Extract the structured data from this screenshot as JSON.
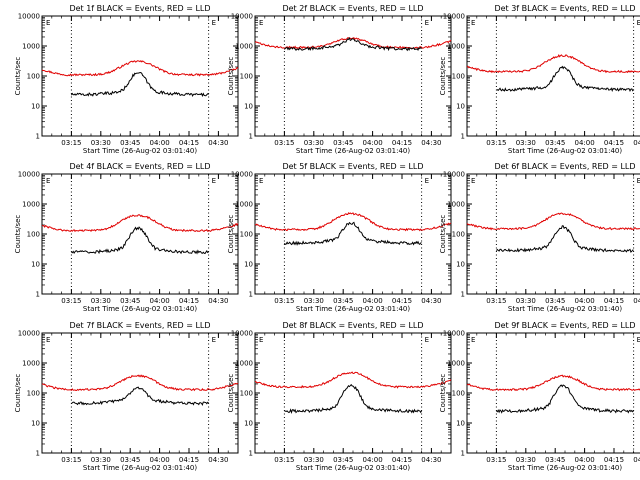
{
  "chart_data": [
    {
      "type": "line",
      "title": "Det 1f BLACK = Events, RED = LLD",
      "xlabel": "Start Time (26-Aug-02 03:01:40)",
      "ylabel": "Counts/sec",
      "yscale": "log",
      "ylim": [
        1,
        10000
      ],
      "xlim": [
        "03:00",
        "04:40"
      ],
      "x_ticks": [
        "03:15",
        "03:30",
        "03:45",
        "04:00",
        "04:15",
        "04:30"
      ],
      "y_ticks": [
        "1",
        "10",
        "100",
        "1000",
        "10000"
      ],
      "markers": [
        "03:15",
        "04:25"
      ],
      "marker_label": "E",
      "series": [
        {
          "name": "RED",
          "color": "#e00000",
          "start": "03:00",
          "end": "04:40",
          "base": 110,
          "peak": 310
        },
        {
          "name": "BLACK",
          "color": "#000000",
          "start": "03:15",
          "end": "04:25",
          "base": 24,
          "peak": 120
        }
      ]
    },
    {
      "type": "line",
      "title": "Det 2f BLACK = Events, RED = LLD",
      "xlabel": "Start Time (26-Aug-02 03:01:40)",
      "ylabel": "Counts/sec",
      "yscale": "log",
      "ylim": [
        1,
        10000
      ],
      "xlim": [
        "03:00",
        "04:40"
      ],
      "x_ticks": [
        "03:15",
        "03:30",
        "03:45",
        "04:00",
        "04:15",
        "04:30"
      ],
      "y_ticks": [
        "1",
        "10",
        "100",
        "1000",
        "10000"
      ],
      "markers": [
        "03:15",
        "04:25"
      ],
      "marker_label": "E",
      "series": [
        {
          "name": "RED",
          "color": "#e00000",
          "start": "03:00",
          "end": "04:40",
          "base": 900,
          "peak": 1800
        },
        {
          "name": "BLACK",
          "color": "#000000",
          "start": "03:15",
          "end": "04:25",
          "base": 800,
          "peak": 1400
        }
      ]
    },
    {
      "type": "line",
      "title": "Det 3f BLACK = Events, RED = LLD",
      "xlabel": "Start Time (26-Aug-02 03:01:40)",
      "ylabel": "Counts/sec",
      "yscale": "log",
      "ylim": [
        1,
        10000
      ],
      "xlim": [
        "03:00",
        "04:40"
      ],
      "x_ticks": [
        "03:15",
        "03:30",
        "03:45",
        "04:00",
        "04:15",
        "04:30"
      ],
      "y_ticks": [
        "1",
        "10",
        "100",
        "1000",
        "10000"
      ],
      "markers": [
        "03:15",
        "04:25"
      ],
      "marker_label": "E",
      "series": [
        {
          "name": "RED",
          "color": "#e00000",
          "start": "03:00",
          "end": "04:40",
          "base": 140,
          "peak": 480
        },
        {
          "name": "BLACK",
          "color": "#000000",
          "start": "03:15",
          "end": "04:25",
          "base": 35,
          "peak": 180
        }
      ]
    },
    {
      "type": "line",
      "title": "Det 4f BLACK = Events, RED = LLD",
      "xlabel": "Start Time (26-Aug-02 03:01:40)",
      "ylabel": "Counts/sec",
      "yscale": "log",
      "ylim": [
        1,
        10000
      ],
      "xlim": [
        "03:00",
        "04:40"
      ],
      "x_ticks": [
        "03:15",
        "03:30",
        "03:45",
        "04:00",
        "04:15",
        "04:30"
      ],
      "y_ticks": [
        "1",
        "10",
        "100",
        "1000",
        "10000"
      ],
      "markers": [
        "03:15",
        "04:25"
      ],
      "marker_label": "E",
      "series": [
        {
          "name": "RED",
          "color": "#e00000",
          "start": "03:00",
          "end": "04:40",
          "base": 130,
          "peak": 420
        },
        {
          "name": "BLACK",
          "color": "#000000",
          "start": "03:15",
          "end": "04:25",
          "base": 25,
          "peak": 150
        }
      ]
    },
    {
      "type": "line",
      "title": "Det 5f BLACK = Events, RED = LLD",
      "xlabel": "Start Time (26-Aug-02 03:01:40)",
      "ylabel": "Counts/sec",
      "yscale": "log",
      "ylim": [
        1,
        10000
      ],
      "xlim": [
        "03:00",
        "04:40"
      ],
      "x_ticks": [
        "03:15",
        "03:30",
        "03:45",
        "04:00",
        "04:15",
        "04:30"
      ],
      "y_ticks": [
        "1",
        "10",
        "100",
        "1000",
        "10000"
      ],
      "markers": [
        "03:15",
        "04:25"
      ],
      "marker_label": "E",
      "series": [
        {
          "name": "RED",
          "color": "#e00000",
          "start": "03:00",
          "end": "04:40",
          "base": 140,
          "peak": 480
        },
        {
          "name": "BLACK",
          "color": "#000000",
          "start": "03:15",
          "end": "04:25",
          "base": 50,
          "peak": 220
        }
      ]
    },
    {
      "type": "line",
      "title": "Det 6f BLACK = Events, RED = LLD",
      "xlabel": "Start Time (26-Aug-02 03:01:40)",
      "ylabel": "Counts/sec",
      "yscale": "log",
      "ylim": [
        1,
        10000
      ],
      "xlim": [
        "03:00",
        "04:40"
      ],
      "x_ticks": [
        "03:15",
        "03:30",
        "03:45",
        "04:00",
        "04:15",
        "04:30"
      ],
      "y_ticks": [
        "1",
        "10",
        "100",
        "1000",
        "10000"
      ],
      "markers": [
        "03:15",
        "04:25"
      ],
      "marker_label": "E",
      "series": [
        {
          "name": "RED",
          "color": "#e00000",
          "start": "03:00",
          "end": "04:40",
          "base": 150,
          "peak": 480
        },
        {
          "name": "BLACK",
          "color": "#000000",
          "start": "03:15",
          "end": "04:25",
          "base": 28,
          "peak": 160
        }
      ]
    },
    {
      "type": "line",
      "title": "Det 7f BLACK = Events, RED = LLD",
      "xlabel": "Start Time (26-Aug-02 03:01:40)",
      "ylabel": "Counts/sec",
      "yscale": "log",
      "ylim": [
        1,
        10000
      ],
      "xlim": [
        "03:00",
        "04:40"
      ],
      "x_ticks": [
        "03:15",
        "03:30",
        "03:45",
        "04:00",
        "04:15",
        "04:30"
      ],
      "y_ticks": [
        "1",
        "10",
        "100",
        "1000",
        "10000"
      ],
      "markers": [
        "03:15",
        "04:25"
      ],
      "marker_label": "E",
      "series": [
        {
          "name": "RED",
          "color": "#e00000",
          "start": "03:00",
          "end": "04:40",
          "base": 130,
          "peak": 380
        },
        {
          "name": "BLACK",
          "color": "#000000",
          "start": "03:15",
          "end": "04:25",
          "base": 45,
          "peak": 130
        }
      ]
    },
    {
      "type": "line",
      "title": "Det 8f BLACK = Events, RED = LLD",
      "xlabel": "Start Time (26-Aug-02 03:01:40)",
      "ylabel": "Counts/sec",
      "yscale": "log",
      "ylim": [
        1,
        10000
      ],
      "xlim": [
        "03:00",
        "04:40"
      ],
      "x_ticks": [
        "03:15",
        "03:30",
        "03:45",
        "04:00",
        "04:15",
        "04:30"
      ],
      "y_ticks": [
        "1",
        "10",
        "100",
        "1000",
        "10000"
      ],
      "markers": [
        "03:15",
        "04:25"
      ],
      "marker_label": "E",
      "series": [
        {
          "name": "RED",
          "color": "#e00000",
          "start": "03:00",
          "end": "04:40",
          "base": 160,
          "peak": 480
        },
        {
          "name": "BLACK",
          "color": "#000000",
          "start": "03:15",
          "end": "04:25",
          "base": 25,
          "peak": 170
        }
      ]
    },
    {
      "type": "line",
      "title": "Det 9f BLACK = Events, RED = LLD",
      "xlabel": "Start Time (26-Aug-02 03:01:40)",
      "ylabel": "Counts/sec",
      "yscale": "log",
      "ylim": [
        1,
        10000
      ],
      "xlim": [
        "03:00",
        "04:40"
      ],
      "x_ticks": [
        "03:15",
        "03:30",
        "03:45",
        "04:00",
        "04:15",
        "04:30"
      ],
      "y_ticks": [
        "1",
        "10",
        "100",
        "1000",
        "10000"
      ],
      "markers": [
        "03:15",
        "04:25"
      ],
      "marker_label": "E",
      "series": [
        {
          "name": "RED",
          "color": "#e00000",
          "start": "03:00",
          "end": "04:40",
          "base": 130,
          "peak": 370
        },
        {
          "name": "BLACK",
          "color": "#000000",
          "start": "03:15",
          "end": "04:25",
          "base": 25,
          "peak": 170
        }
      ]
    }
  ]
}
